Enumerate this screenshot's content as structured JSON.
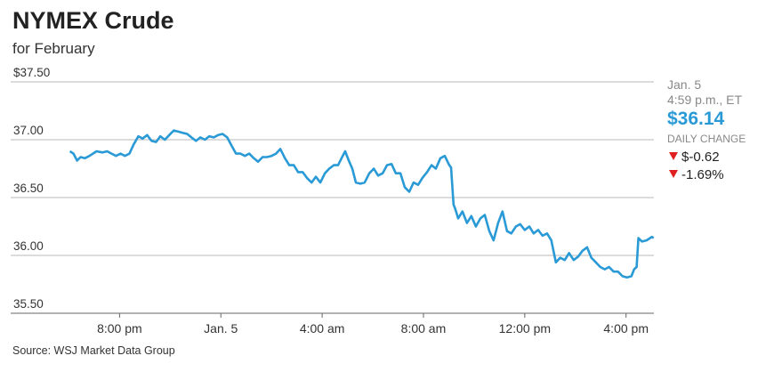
{
  "chart_data": {
    "type": "line",
    "title": "NYMEX Crude",
    "subtitle": "for February",
    "source": "Source: WSJ Market Data Group",
    "color": "#2a9ad6",
    "grid": true,
    "xlim": [
      -8.3,
      17.1
    ],
    "ylim": [
      35.5,
      37.5
    ],
    "xticks": [
      {
        "value": -4,
        "label": "8:00 pm"
      },
      {
        "value": 0,
        "label": "Jan. 5"
      },
      {
        "value": 4,
        "label": "4:00 am"
      },
      {
        "value": 8,
        "label": "8:00 am"
      },
      {
        "value": 12,
        "label": "12:00 pm"
      },
      {
        "value": 16,
        "label": "4:00 pm"
      }
    ],
    "yticks": [
      {
        "value": 35.5,
        "label": "35.50"
      },
      {
        "value": 36,
        "label": "36.00"
      },
      {
        "value": 36.5,
        "label": "36.50"
      },
      {
        "value": 37,
        "label": "37.00"
      },
      {
        "value": 37.5,
        "label": "$37.50"
      }
    ],
    "x": [
      -5.96,
      -5.82,
      -5.68,
      -5.54,
      -5.37,
      -5.19,
      -4.91,
      -4.67,
      -4.49,
      -4.32,
      -4.14,
      -3.96,
      -3.79,
      -3.61,
      -3.44,
      -3.26,
      -3.09,
      -2.91,
      -2.74,
      -2.56,
      -2.39,
      -2.21,
      -2.04,
      -1.86,
      -1.68,
      -1.51,
      -1.33,
      -1.16,
      -0.98,
      -0.81,
      -0.63,
      -0.46,
      -0.28,
      -0.11,
      0.07,
      0.25,
      0.42,
      0.6,
      0.77,
      0.95,
      1.12,
      1.3,
      1.47,
      1.65,
      1.82,
      2.0,
      2.18,
      2.35,
      2.53,
      2.7,
      2.88,
      3.05,
      3.23,
      3.4,
      3.58,
      3.75,
      3.93,
      4.11,
      4.28,
      4.46,
      4.63,
      4.81,
      4.91,
      5.05,
      5.19,
      5.33,
      5.51,
      5.68,
      5.86,
      6.04,
      6.21,
      6.39,
      6.56,
      6.74,
      6.91,
      7.09,
      7.26,
      7.44,
      7.61,
      7.79,
      7.96,
      8.14,
      8.32,
      8.49,
      8.67,
      8.84,
      9.02,
      9.09,
      9.19,
      9.26,
      9.37,
      9.54,
      9.72,
      9.89,
      10.07,
      10.25,
      10.42,
      10.6,
      10.77,
      10.95,
      11.12,
      11.3,
      11.47,
      11.65,
      11.82,
      12.0,
      12.18,
      12.35,
      12.53,
      12.7,
      12.88,
      13.05,
      13.23,
      13.4,
      13.58,
      13.75,
      13.93,
      14.11,
      14.28,
      14.46,
      14.63,
      14.81,
      14.98,
      15.16,
      15.33,
      15.51,
      15.68,
      15.86,
      16.04,
      16.21,
      16.32,
      16.42,
      16.49,
      16.63,
      16.81,
      17.02,
      17.09
    ],
    "values": [
      36.9,
      36.88,
      36.82,
      36.85,
      36.84,
      36.86,
      36.9,
      36.89,
      36.9,
      36.88,
      36.86,
      36.88,
      36.86,
      36.88,
      36.96,
      37.03,
      37.01,
      37.04,
      36.99,
      36.98,
      37.03,
      37.0,
      37.04,
      37.08,
      37.07,
      37.06,
      37.05,
      37.02,
      36.99,
      37.02,
      37.0,
      37.03,
      37.02,
      37.04,
      37.05,
      37.02,
      36.95,
      36.88,
      36.88,
      36.86,
      36.88,
      36.84,
      36.81,
      36.85,
      36.85,
      36.86,
      36.88,
      36.92,
      36.84,
      36.78,
      36.78,
      36.72,
      36.72,
      36.67,
      36.63,
      36.68,
      36.63,
      36.71,
      36.75,
      36.78,
      36.78,
      36.86,
      36.9,
      36.82,
      36.75,
      36.63,
      36.62,
      36.63,
      36.71,
      36.75,
      36.69,
      36.71,
      36.78,
      36.79,
      36.71,
      36.71,
      36.59,
      36.55,
      36.63,
      36.61,
      36.67,
      36.72,
      36.78,
      36.75,
      36.84,
      36.86,
      36.78,
      36.76,
      36.44,
      36.4,
      36.32,
      36.38,
      36.28,
      36.34,
      36.25,
      36.32,
      36.35,
      36.21,
      36.13,
      36.28,
      36.38,
      36.21,
      36.19,
      36.25,
      36.27,
      36.22,
      36.25,
      36.19,
      36.22,
      36.17,
      36.19,
      36.13,
      35.94,
      35.98,
      35.96,
      36.02,
      35.96,
      35.99,
      36.04,
      36.07,
      35.98,
      35.94,
      35.9,
      35.88,
      35.9,
      35.86,
      35.86,
      35.82,
      35.81,
      35.82,
      35.88,
      35.9,
      36.15,
      36.12,
      36.13,
      36.16,
      36.15
    ]
  },
  "sidebar": {
    "date": "Jan. 5",
    "time": "4:59 p.m., ET",
    "price": "$36.14",
    "change_label": "DAILY CHANGE",
    "change": "$-0.62",
    "change_pct": "-1.69%"
  }
}
